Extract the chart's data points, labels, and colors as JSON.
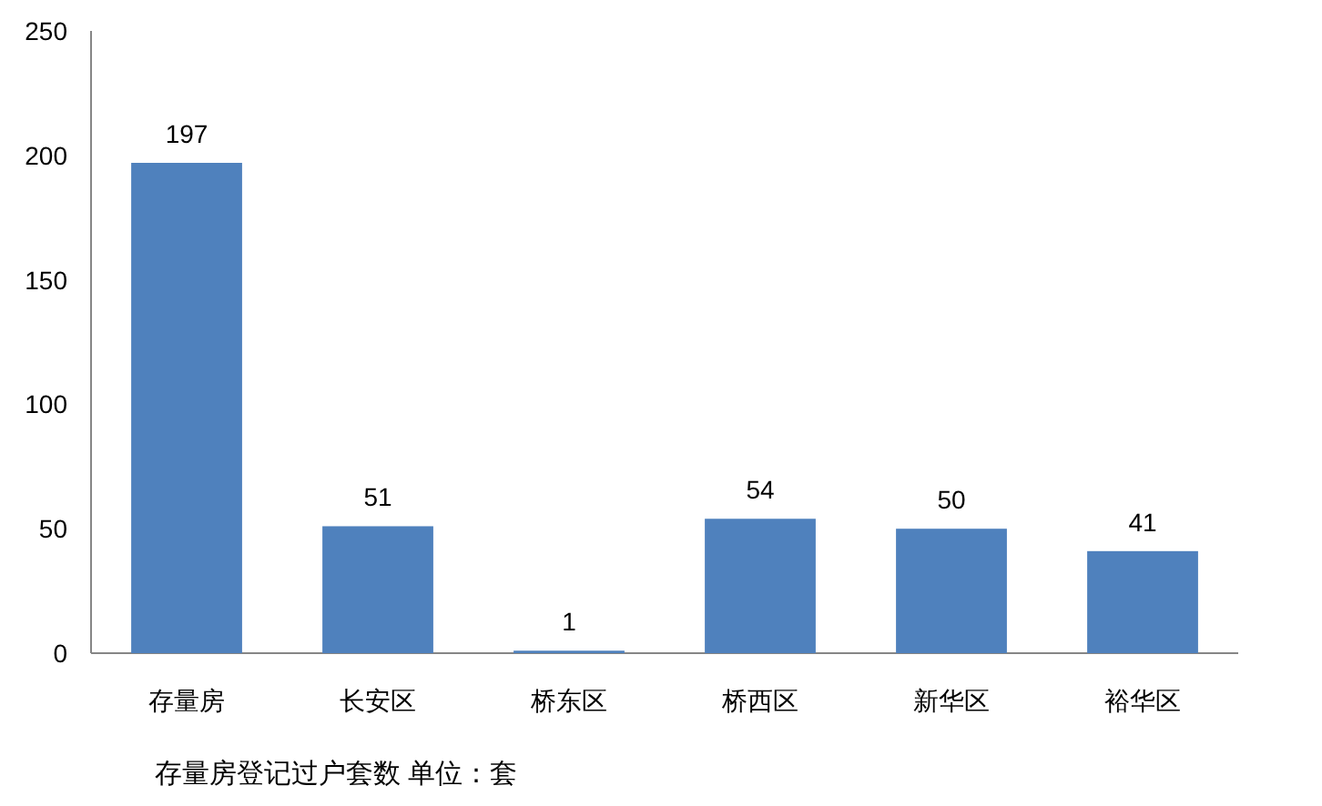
{
  "chart_data": {
    "type": "bar",
    "title": "存量房登记过户套数 单位：套",
    "categories": [
      "存量房",
      "长安区",
      "桥东区",
      "桥西区",
      "新华区",
      "裕华区"
    ],
    "values": [
      197,
      51,
      1,
      54,
      50,
      41
    ],
    "color": "#4f81bd",
    "ylim": [
      0,
      250
    ],
    "yticks": [
      0,
      50,
      100,
      150,
      200,
      250
    ],
    "data_labels": true
  }
}
